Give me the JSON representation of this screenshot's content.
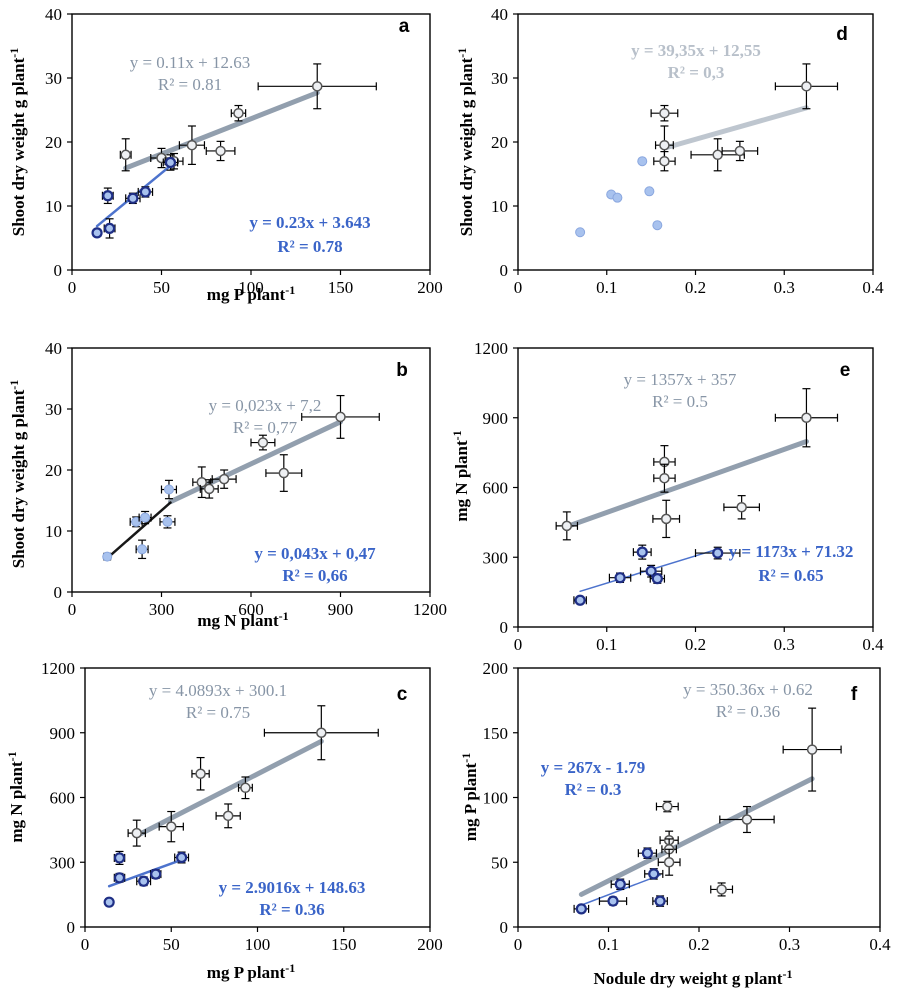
{
  "colors": {
    "gray": "#8795a6",
    "gray_light": "#b8c0ca",
    "blue": "#3a64c8",
    "dark_blue": "#1f2f86",
    "point_light": "#a8c2ee",
    "black": "#000000"
  },
  "chart_data": [
    {
      "id": "a",
      "type": "scatter",
      "panel_label": "a",
      "xlabel": "mg P plant-1",
      "ylabel": "Shoot dry weight  g plant-1",
      "xlim": [
        0,
        200
      ],
      "ylim": [
        0,
        40
      ],
      "xticks": [
        "0",
        "50",
        "100",
        "150",
        "200"
      ],
      "yticks": [
        "0",
        "10",
        "20",
        "30",
        "40"
      ],
      "series": [
        {
          "name": "gray",
          "marker": "gray",
          "points": [
            [
              30,
              18,
              3,
              2.5
            ],
            [
              50,
              17.5,
              6,
              1.5
            ],
            [
              57,
              17,
              5,
              1.2
            ],
            [
              67,
              19.5,
              7,
              3
            ],
            [
              83,
              18.6,
              8,
              1.5
            ],
            [
              93,
              24.5,
              4,
              1.2
            ],
            [
              137,
              28.7,
              33,
              3.5
            ]
          ]
        },
        {
          "name": "blue",
          "marker": "blue",
          "points": [
            [
              14,
              5.8,
              2,
              0.5
            ],
            [
              20,
              11.6,
              3,
              1.2
            ],
            [
              21,
              6.5,
              3,
              1.5
            ],
            [
              34,
              11.2,
              4,
              0.8
            ],
            [
              41,
              12.2,
              4,
              0.8
            ],
            [
              55,
              16.8,
              4,
              1.2
            ]
          ]
        }
      ],
      "fits": [
        {
          "label": "gray",
          "style": "gray",
          "x": [
            30,
            137
          ],
          "slope": 0.11,
          "intercept": 12.63,
          "equation": "y = 0.11x + 12.63",
          "r2": "R² = 0.81"
        },
        {
          "label": "blue",
          "style": "blue",
          "x": [
            14,
            58
          ],
          "slope": 0.23,
          "intercept": 3.643,
          "equation": "y = 0.23x + 3.643",
          "r2": "R² = 0.78"
        }
      ]
    },
    {
      "id": "d",
      "type": "scatter",
      "panel_label": "d",
      "xlabel": "",
      "ylabel": "Shoot dry weight g plant-1",
      "xlim": [
        0,
        0.4
      ],
      "ylim": [
        0,
        40
      ],
      "xticks": [
        "0",
        "0.1",
        "0.2",
        "0.3",
        "0.4"
      ],
      "yticks": [
        "0",
        "10",
        "20",
        "30",
        "40"
      ],
      "series": [
        {
          "name": "gray",
          "marker": "gray",
          "points": [
            [
              0.165,
              24.5,
              0.015,
              1.2
            ],
            [
              0.165,
              19.5,
              0.01,
              3
            ],
            [
              0.165,
              17,
              0.012,
              1.5
            ],
            [
              0.225,
              18,
              0.03,
              2.5
            ],
            [
              0.25,
              18.6,
              0.02,
              1.5
            ],
            [
              0.325,
              28.7,
              0.035,
              3.5
            ]
          ]
        },
        {
          "name": "blue",
          "marker": "light",
          "points": [
            [
              0.07,
              5.9
            ],
            [
              0.105,
              11.8
            ],
            [
              0.112,
              11.3
            ],
            [
              0.14,
              17
            ],
            [
              0.148,
              12.3
            ],
            [
              0.157,
              7
            ]
          ]
        }
      ],
      "fits": [
        {
          "label": "gray",
          "style": "gray-light",
          "x": [
            0.165,
            0.325
          ],
          "slope": 39.35,
          "intercept": 12.55,
          "equation": "y = 39,35x + 12,55",
          "r2": "R² = 0,3"
        }
      ]
    },
    {
      "id": "b",
      "type": "scatter",
      "panel_label": "b",
      "xlabel": "mg N plant -1",
      "ylabel": "Shoot dry weight  g plant-1",
      "xlim": [
        0,
        1200
      ],
      "ylim": [
        0,
        40
      ],
      "xticks": [
        "0",
        "300",
        "600",
        "900",
        "1200"
      ],
      "yticks": [
        "0",
        "10",
        "20",
        "30",
        "40"
      ],
      "series": [
        {
          "name": "gray",
          "marker": "gray",
          "points": [
            [
              435,
              18,
              30,
              2.5
            ],
            [
              460,
              16.9,
              30,
              1.5
            ],
            [
              510,
              18.5,
              40,
              1.5
            ],
            [
              640,
              24.5,
              40,
              1.2
            ],
            [
              710,
              19.5,
              60,
              3
            ],
            [
              900,
              28.7,
              130,
              3.5
            ]
          ]
        },
        {
          "name": "blue",
          "marker": "light",
          "points": [
            [
              118,
              5.8,
              10,
              0.5
            ],
            [
              215,
              11.5,
              20,
              0.8
            ],
            [
              235,
              7,
              20,
              1.5
            ],
            [
              245,
              12.2,
              20,
              1
            ],
            [
              320,
              11.5,
              25,
              1
            ],
            [
              325,
              16.8,
              25,
              1.5
            ]
          ]
        }
      ],
      "fits": [
        {
          "label": "gray",
          "style": "gray",
          "x": [
            330,
            900
          ],
          "slope": 0.023,
          "intercept": 7.2,
          "equation": "y = 0,023x + 7,2",
          "r2": "R² = 0,77"
        },
        {
          "label": "blue",
          "style": "black",
          "x": [
            118,
            330
          ],
          "slope": 0.043,
          "intercept": 0.47,
          "equation": "y = 0,043x + 0,47",
          "r2": "R² = 0,66"
        }
      ]
    },
    {
      "id": "e",
      "type": "scatter",
      "panel_label": "e",
      "xlabel": "",
      "ylabel": "mg N plant -1",
      "xlim": [
        0,
        0.4
      ],
      "ylim": [
        0,
        1200
      ],
      "xticks": [
        "0",
        "0.1",
        "0.2",
        "0.3",
        "0.4"
      ],
      "yticks": [
        "0",
        "300",
        "600",
        "900",
        "1200"
      ],
      "series": [
        {
          "name": "gray",
          "marker": "gray",
          "points": [
            [
              0.055,
              435,
              0.012,
              60
            ],
            [
              0.165,
              710,
              0.012,
              70
            ],
            [
              0.165,
              640,
              0.012,
              60
            ],
            [
              0.167,
              465,
              0.015,
              80
            ],
            [
              0.252,
              515,
              0.02,
              50
            ],
            [
              0.325,
              900,
              0.035,
              125
            ]
          ]
        },
        {
          "name": "blue",
          "marker": "blue",
          "points": [
            [
              0.07,
              115,
              0.007,
              10
            ],
            [
              0.115,
              212,
              0.012,
              20
            ],
            [
              0.14,
              322,
              0.01,
              30
            ],
            [
              0.15,
              240,
              0.012,
              25
            ],
            [
              0.157,
              208,
              0.008,
              20
            ],
            [
              0.225,
              318,
              0.025,
              25
            ]
          ]
        }
      ],
      "fits": [
        {
          "label": "gray",
          "style": "gray",
          "x": [
            0.055,
            0.325
          ],
          "slope": 1357,
          "intercept": 357,
          "equation": "y = 1357x + 357",
          "r2": "R² = 0.5"
        },
        {
          "label": "blue",
          "style": "blue-thin",
          "x": [
            0.07,
            0.225
          ],
          "slope": 1173,
          "intercept": 71.32,
          "equation": "y = 1173x + 71.32",
          "r2": "R² = 0.65"
        }
      ]
    },
    {
      "id": "c",
      "type": "scatter",
      "panel_label": "c",
      "xlabel": "mg P plant-1",
      "ylabel": "mg N plant -1",
      "xlim": [
        0,
        200
      ],
      "ylim": [
        0,
        1200
      ],
      "xticks": [
        "0",
        "50",
        "100",
        "150",
        "200"
      ],
      "yticks": [
        "0",
        "300",
        "600",
        "900",
        "1200"
      ],
      "series": [
        {
          "name": "gray",
          "marker": "gray",
          "points": [
            [
              30,
              435,
              5,
              60
            ],
            [
              50,
              465,
              7,
              70
            ],
            [
              67,
              710,
              5,
              75
            ],
            [
              83,
              515,
              7,
              55
            ],
            [
              93,
              645,
              4,
              50
            ],
            [
              137,
              900,
              33,
              125
            ]
          ]
        },
        {
          "name": "blue",
          "marker": "blue",
          "points": [
            [
              14,
              115,
              2,
              10
            ],
            [
              20,
              228,
              3,
              20
            ],
            [
              20,
              320,
              3,
              30
            ],
            [
              34,
              212,
              4,
              20
            ],
            [
              41,
              245,
              3,
              20
            ],
            [
              56,
              322,
              4,
              25
            ]
          ]
        }
      ],
      "fits": [
        {
          "label": "gray",
          "style": "gray",
          "x": [
            30,
            137
          ],
          "slope": 4.0893,
          "intercept": 300.1,
          "equation": "y = 4.0893x + 300.1",
          "r2": "R² = 0.75"
        },
        {
          "label": "blue",
          "style": "blue",
          "x": [
            14,
            58
          ],
          "slope": 2.9016,
          "intercept": 148.63,
          "equation": "y = 2.9016x + 148.63",
          "r2": "R² = 0.36"
        }
      ]
    },
    {
      "id": "f",
      "type": "scatter",
      "panel_label": "f",
      "xlabel": "Nodule dry weight g plant -1",
      "ylabel": "mg P  plant -1",
      "xlim": [
        0,
        0.4
      ],
      "ylim": [
        0,
        200
      ],
      "xticks": [
        "0",
        "0.1",
        "0.2",
        "0.3",
        "0.4"
      ],
      "yticks": [
        "0",
        "50",
        "100",
        "150",
        "200"
      ],
      "series": [
        {
          "name": "gray",
          "marker": "gray",
          "points": [
            [
              0.165,
              93,
              0.012,
              4
            ],
            [
              0.167,
              67,
              0.01,
              7
            ],
            [
              0.167,
              60,
              0.008,
              8
            ],
            [
              0.167,
              50,
              0.012,
              10
            ],
            [
              0.225,
              29,
              0.012,
              5
            ],
            [
              0.253,
              83,
              0.03,
              10
            ],
            [
              0.325,
              137,
              0.032,
              32
            ]
          ]
        },
        {
          "name": "blue",
          "marker": "blue",
          "points": [
            [
              0.07,
              14,
              0.008,
              2
            ],
            [
              0.105,
              20,
              0.015,
              3
            ],
            [
              0.113,
              33,
              0.01,
              4
            ],
            [
              0.143,
              57,
              0.01,
              4
            ],
            [
              0.15,
              41,
              0.01,
              4
            ],
            [
              0.157,
              20,
              0.008,
              4
            ]
          ]
        }
      ],
      "fits": [
        {
          "label": "gray",
          "style": "gray",
          "x": [
            0.07,
            0.325
          ],
          "slope": 350.36,
          "intercept": 0.62,
          "equation": "y = 350.36x + 0.62",
          "r2": "R² = 0.36"
        },
        {
          "label": "blue",
          "style": "blue-thin",
          "x": [
            0.07,
            0.157
          ],
          "slope": 267,
          "intercept": -1.79,
          "equation": "y = 267x - 1.79",
          "r2": "R² = 0.3"
        }
      ]
    }
  ]
}
